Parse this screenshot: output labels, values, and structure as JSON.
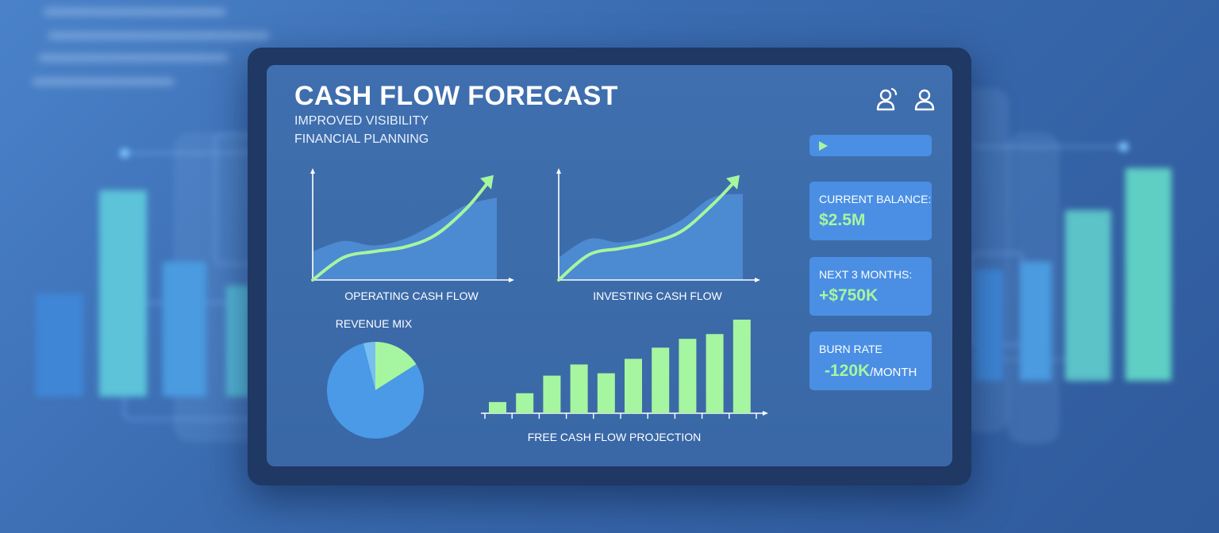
{
  "header": {
    "title": "CASH FLOW FORECAST",
    "subtitle_line1": "IMPROVED VISIBILITY",
    "subtitle_line2": "FINANCIAL PLANNING"
  },
  "icons": {
    "share_user": "user-share-icon",
    "profile": "user-icon",
    "play": "play-icon"
  },
  "colors": {
    "accent_green": "#a6f5a0",
    "card_blue": "#4a8fe4",
    "pie_blue": "#4a9ae8",
    "screen_blue": "#3f6fae"
  },
  "metrics": {
    "current_balance": {
      "label": "CURRENT BALANCE:",
      "value": "$2.5M"
    },
    "next_months": {
      "label": "NEXT 3 MONTHS:",
      "value": "+$750K"
    },
    "burn_rate": {
      "label": "BURN RATE",
      "value": "-120K",
      "unit": "/MONTH"
    }
  },
  "chart_data": [
    {
      "type": "area",
      "title": "OPERATING CASH FLOW",
      "x": [
        0,
        1,
        2,
        3,
        4,
        5,
        6
      ],
      "area_values": [
        38,
        52,
        46,
        55,
        76,
        100,
        110
      ],
      "trend_values": [
        0,
        30,
        38,
        44,
        60,
        95,
        140
      ]
    },
    {
      "type": "area",
      "title": "INVESTING CASH FLOW",
      "x": [
        0,
        1,
        2,
        3,
        4,
        5,
        6
      ],
      "area_values": [
        30,
        55,
        50,
        60,
        80,
        110,
        115
      ],
      "trend_values": [
        0,
        34,
        42,
        50,
        65,
        100,
        140
      ]
    },
    {
      "type": "pie",
      "title": "REVENUE MIX",
      "values": [
        80,
        16,
        4
      ]
    },
    {
      "type": "bar",
      "title": "FREE CASH FLOW PROJECTION",
      "values": [
        14,
        25,
        47,
        61,
        50,
        68,
        82,
        93,
        99,
        117
      ]
    }
  ]
}
